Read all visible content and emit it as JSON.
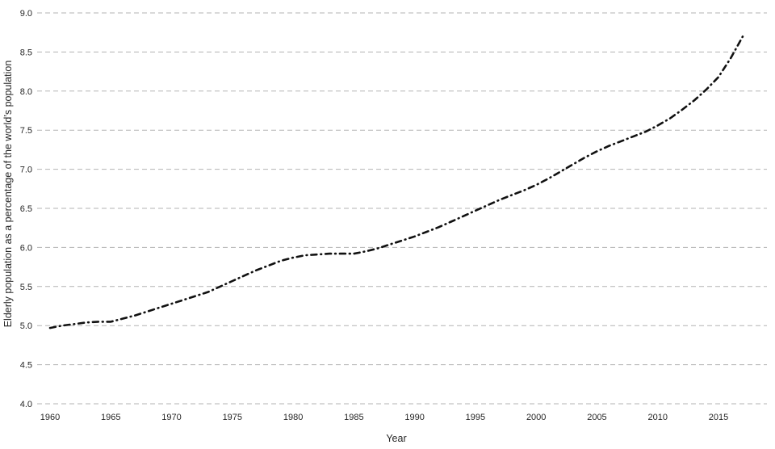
{
  "chart_data": {
    "type": "line",
    "title": "",
    "xlabel": "Year",
    "ylabel": "Elderly population as a percentage of the world’s population",
    "x": [
      1960,
      1961,
      1962,
      1963,
      1964,
      1965,
      1966,
      1967,
      1968,
      1969,
      1970,
      1971,
      1972,
      1973,
      1974,
      1975,
      1976,
      1977,
      1978,
      1979,
      1980,
      1981,
      1982,
      1983,
      1984,
      1985,
      1986,
      1987,
      1988,
      1989,
      1990,
      1991,
      1992,
      1993,
      1994,
      1995,
      1996,
      1997,
      1998,
      1999,
      2000,
      2001,
      2002,
      2003,
      2004,
      2005,
      2006,
      2007,
      2008,
      2009,
      2010,
      2011,
      2012,
      2013,
      2014,
      2015,
      2016,
      2017
    ],
    "series": [
      {
        "name": "Elderly population as a percentage of the world’s population",
        "values": [
          4.97,
          5.0,
          5.02,
          5.04,
          5.05,
          5.05,
          5.09,
          5.13,
          5.18,
          5.23,
          5.28,
          5.33,
          5.38,
          5.43,
          5.5,
          5.57,
          5.64,
          5.71,
          5.77,
          5.83,
          5.87,
          5.9,
          5.91,
          5.92,
          5.92,
          5.92,
          5.95,
          5.99,
          6.04,
          6.09,
          6.14,
          6.2,
          6.26,
          6.33,
          6.4,
          6.47,
          6.54,
          6.61,
          6.67,
          6.73,
          6.8,
          6.88,
          6.97,
          7.06,
          7.15,
          7.23,
          7.3,
          7.36,
          7.42,
          7.48,
          7.56,
          7.65,
          7.76,
          7.88,
          8.02,
          8.18,
          8.42,
          8.7
        ]
      }
    ],
    "xlim": [
      1960,
      2017
    ],
    "ylim": [
      4.0,
      9.0
    ],
    "yticks": [
      4.0,
      4.5,
      5.0,
      5.5,
      6.0,
      6.5,
      7.0,
      7.5,
      8.0,
      8.5,
      9.0
    ],
    "xticks": [
      1960,
      1965,
      1970,
      1975,
      1980,
      1985,
      1990,
      1995,
      2000,
      2005,
      2010,
      2015
    ],
    "grid": true,
    "legend": false,
    "line_color": "#111111",
    "line_style": "dash-dot",
    "gridline_color": "#b3b3b3",
    "text_color": "#262626",
    "background_color": "#ffffff"
  }
}
